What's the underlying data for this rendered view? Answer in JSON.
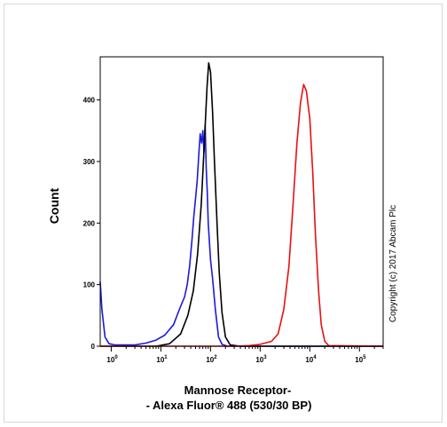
{
  "chart_data": {
    "type": "area",
    "title": "",
    "ylabel": "Count",
    "xlabel_line1": "Mannose Receptor-",
    "xlabel_line2": "- Alexa Fluor® 488 (530/30 BP)",
    "x_scale": "log",
    "xlim": [
      0.6,
      300000
    ],
    "ylim": [
      0,
      470
    ],
    "x_ticks": [
      {
        "value": 1,
        "label": "10",
        "exp": "0"
      },
      {
        "value": 10,
        "label": "10",
        "exp": "1"
      },
      {
        "value": 100,
        "label": "10",
        "exp": "2"
      },
      {
        "value": 1000,
        "label": "10",
        "exp": "3"
      },
      {
        "value": 10000,
        "label": "10",
        "exp": "4"
      },
      {
        "value": 100000,
        "label": "10",
        "exp": "5"
      }
    ],
    "y_ticks": [
      0,
      100,
      200,
      300,
      400
    ],
    "grid": false,
    "legend": "none",
    "series": [
      {
        "color": "#1a1adb",
        "points": [
          [
            0.6,
            105
          ],
          [
            0.65,
            60
          ],
          [
            0.75,
            15
          ],
          [
            0.9,
            4
          ],
          [
            1.2,
            2
          ],
          [
            2,
            2
          ],
          [
            3,
            2
          ],
          [
            5,
            5
          ],
          [
            8,
            10
          ],
          [
            12,
            18
          ],
          [
            18,
            35
          ],
          [
            25,
            65
          ],
          [
            30,
            80
          ],
          [
            34,
            100
          ],
          [
            38,
            130
          ],
          [
            42,
            170
          ],
          [
            46,
            210
          ],
          [
            50,
            240
          ],
          [
            54,
            270
          ],
          [
            58,
            310
          ],
          [
            62,
            345
          ],
          [
            66,
            330
          ],
          [
            70,
            350
          ],
          [
            74,
            315
          ],
          [
            78,
            360
          ],
          [
            82,
            290
          ],
          [
            86,
            250
          ],
          [
            90,
            200
          ],
          [
            95,
            170
          ],
          [
            100,
            140
          ],
          [
            110,
            110
          ],
          [
            125,
            60
          ],
          [
            145,
            15
          ],
          [
            170,
            3
          ],
          [
            220,
            0
          ],
          [
            300000,
            0
          ]
        ]
      },
      {
        "color": "#000000",
        "points": [
          [
            0.6,
            0
          ],
          [
            2,
            0
          ],
          [
            8,
            0
          ],
          [
            15,
            4
          ],
          [
            25,
            20
          ],
          [
            35,
            50
          ],
          [
            45,
            90
          ],
          [
            55,
            150
          ],
          [
            65,
            230
          ],
          [
            75,
            330
          ],
          [
            85,
            420
          ],
          [
            92,
            460
          ],
          [
            100,
            445
          ],
          [
            110,
            380
          ],
          [
            120,
            300
          ],
          [
            135,
            200
          ],
          [
            150,
            120
          ],
          [
            170,
            55
          ],
          [
            200,
            15
          ],
          [
            250,
            2
          ],
          [
            400,
            0
          ],
          [
            300000,
            0
          ]
        ]
      },
      {
        "color": "#e81010",
        "points": [
          [
            0.6,
            0
          ],
          [
            300,
            0
          ],
          [
            600,
            1
          ],
          [
            1000,
            3
          ],
          [
            1700,
            8
          ],
          [
            2300,
            20
          ],
          [
            3000,
            60
          ],
          [
            3800,
            130
          ],
          [
            4600,
            230
          ],
          [
            5500,
            330
          ],
          [
            6500,
            395
          ],
          [
            7500,
            425
          ],
          [
            8500,
            415
          ],
          [
            10000,
            370
          ],
          [
            11500,
            280
          ],
          [
            13000,
            180
          ],
          [
            15000,
            90
          ],
          [
            17000,
            35
          ],
          [
            20000,
            8
          ],
          [
            24000,
            1
          ],
          [
            300000,
            0
          ]
        ]
      }
    ]
  },
  "copyright": "Copyright (c) 2017 Abcam Plc"
}
